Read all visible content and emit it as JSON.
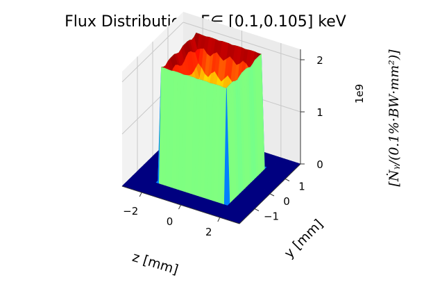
{
  "chart_data": {
    "type": "surface3d",
    "title": "Flux Distribution -E∈ [0.1,0.105] keV",
    "xlabel": "z [mm]",
    "ylabel": "y [mm]",
    "zlabel": "[Ṅᵧ/(0.1%·BW·mm²)]",
    "offset_text": "1e9",
    "xlim": [
      -3,
      3
    ],
    "ylim": [
      -2,
      2
    ],
    "zlim": [
      0,
      2200000000.0
    ],
    "x_ticks": [
      "−2",
      "0",
      "2"
    ],
    "y_ticks": [
      "−1",
      "0",
      "1"
    ],
    "z_ticks": [
      "0",
      "1",
      "2"
    ],
    "colormap": "jet",
    "surface": {
      "z_half_width_mm": 1.7,
      "y_half_width_mm": 1.15,
      "peak": 2200000000.0,
      "edge_level": 1800000000.0,
      "center_level": 1200000000.0
    },
    "grid": true
  },
  "colors": {
    "pane": "#f2f2f2",
    "grid": "#c8c8c8",
    "base": "#000080"
  }
}
